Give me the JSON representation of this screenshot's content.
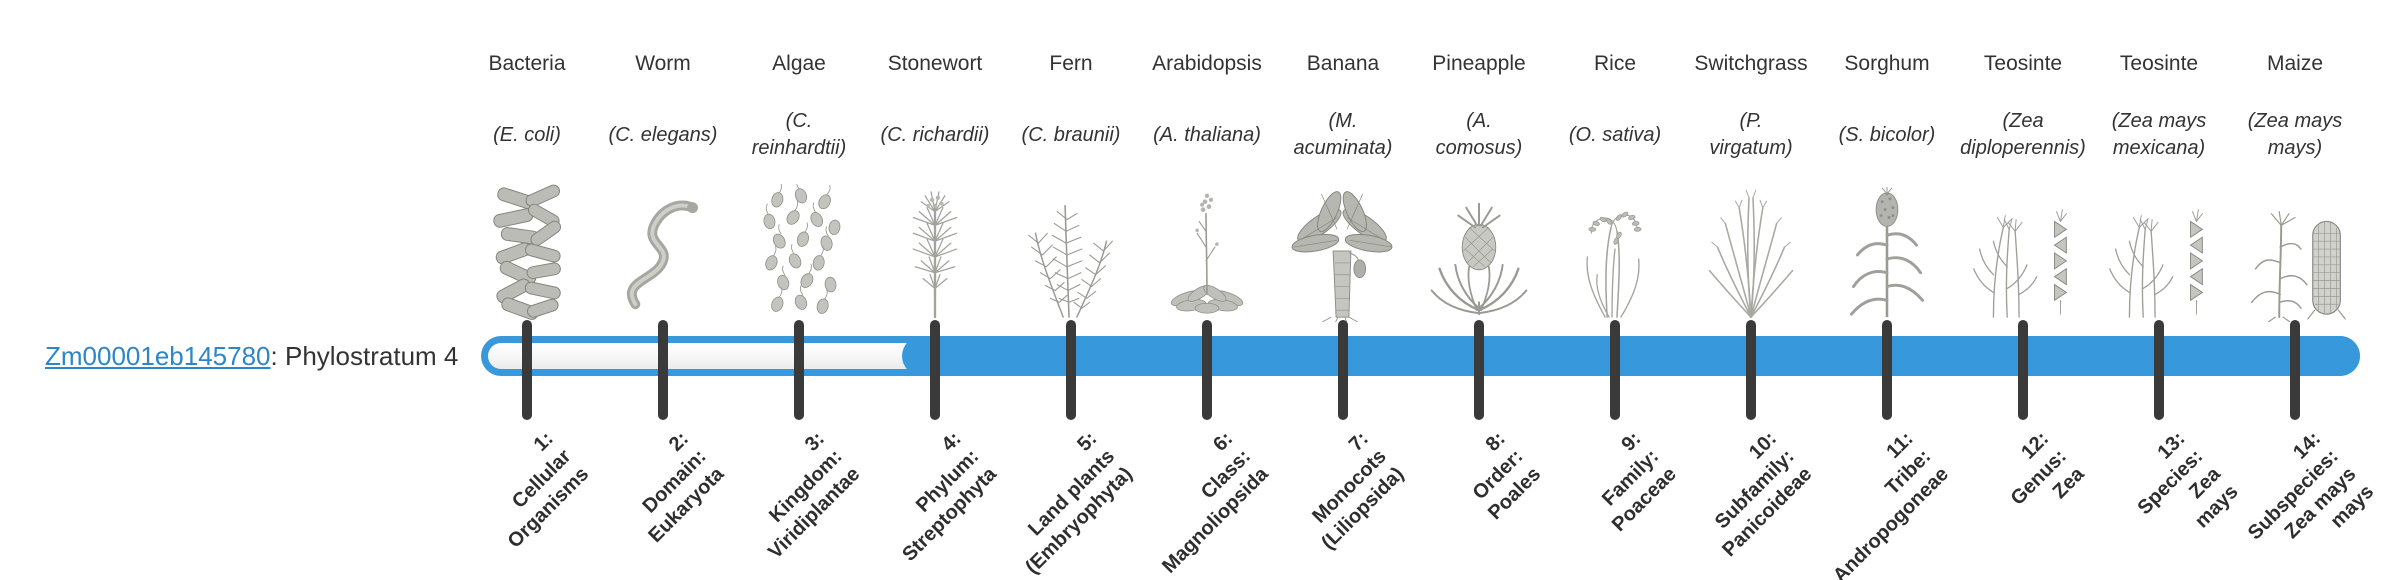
{
  "gene": {
    "id": "Zm00001eb145780",
    "suffix": ": Phylostratum 4"
  },
  "bar": {
    "accent_color": "#3798db",
    "tick_color": "#3a3a3a",
    "total_strata": 14,
    "filled_from_stratum": 4
  },
  "organisms": [
    {
      "name": "Bacteria",
      "sci_lines": [
        "(E. coli)"
      ],
      "icon": "bacteria-icon",
      "rank_lines": [
        "1:",
        "Cellular",
        "Organisms"
      ]
    },
    {
      "name": "Worm",
      "sci_lines": [
        "(C. elegans)"
      ],
      "icon": "worm-icon",
      "rank_lines": [
        "2:",
        "Domain:",
        "Eukaryota"
      ]
    },
    {
      "name": "Algae",
      "sci_lines": [
        "(C.",
        "reinhardtii)"
      ],
      "icon": "algae-icon",
      "rank_lines": [
        "3:",
        "Kingdom:",
        "Viridiplantae"
      ]
    },
    {
      "name": "Stonewort",
      "sci_lines": [
        "(C. richardii)"
      ],
      "icon": "stonewort-icon",
      "rank_lines": [
        "4:",
        "Phylum:",
        "Streptophyta"
      ]
    },
    {
      "name": "Fern",
      "sci_lines": [
        "(C. braunii)"
      ],
      "icon": "fern-icon",
      "rank_lines": [
        "5:",
        "Land plants",
        "(Embryophyta)"
      ]
    },
    {
      "name": "Arabidopsis",
      "sci_lines": [
        "(A. thaliana)"
      ],
      "icon": "arabidopsis-icon",
      "rank_lines": [
        "6:",
        "Class:",
        "Magnoliopsida"
      ]
    },
    {
      "name": "Banana",
      "sci_lines": [
        "(M.",
        "acuminata)"
      ],
      "icon": "banana-icon",
      "rank_lines": [
        "7:",
        "Monocots",
        "(Liliopsida)"
      ]
    },
    {
      "name": "Pineapple",
      "sci_lines": [
        "(A.",
        "comosus)"
      ],
      "icon": "pineapple-icon",
      "rank_lines": [
        "8:",
        "Order:",
        "Poales"
      ]
    },
    {
      "name": "Rice",
      "sci_lines": [
        "(O. sativa)"
      ],
      "icon": "rice-icon",
      "rank_lines": [
        "9:",
        "Family:",
        "Poaceae"
      ]
    },
    {
      "name": "Switchgrass",
      "sci_lines": [
        "(P.",
        "virgatum)"
      ],
      "icon": "switchgrass-icon",
      "rank_lines": [
        "10:",
        "Subfamily:",
        "Panicoideae"
      ]
    },
    {
      "name": "Sorghum",
      "sci_lines": [
        "(S. bicolor)"
      ],
      "icon": "sorghum-icon",
      "rank_lines": [
        "11:",
        "Tribe:",
        "Andropogoneae"
      ]
    },
    {
      "name": "Teosinte",
      "sci_lines": [
        "(Zea",
        "diploperennis)"
      ],
      "icon": "teosinte-icon",
      "rank_lines": [
        "12:",
        "Genus:",
        "Zea"
      ]
    },
    {
      "name": "Teosinte",
      "sci_lines": [
        "(Zea mays",
        "mexicana)"
      ],
      "icon": "teosinte-icon",
      "rank_lines": [
        "13:",
        "Species:",
        "Zea",
        "mays"
      ]
    },
    {
      "name": "Maize",
      "sci_lines": [
        "(Zea mays",
        "mays)"
      ],
      "icon": "maize-icon",
      "rank_lines": [
        "14:",
        "Subspecies:",
        "Zea mays",
        "mays"
      ]
    }
  ]
}
